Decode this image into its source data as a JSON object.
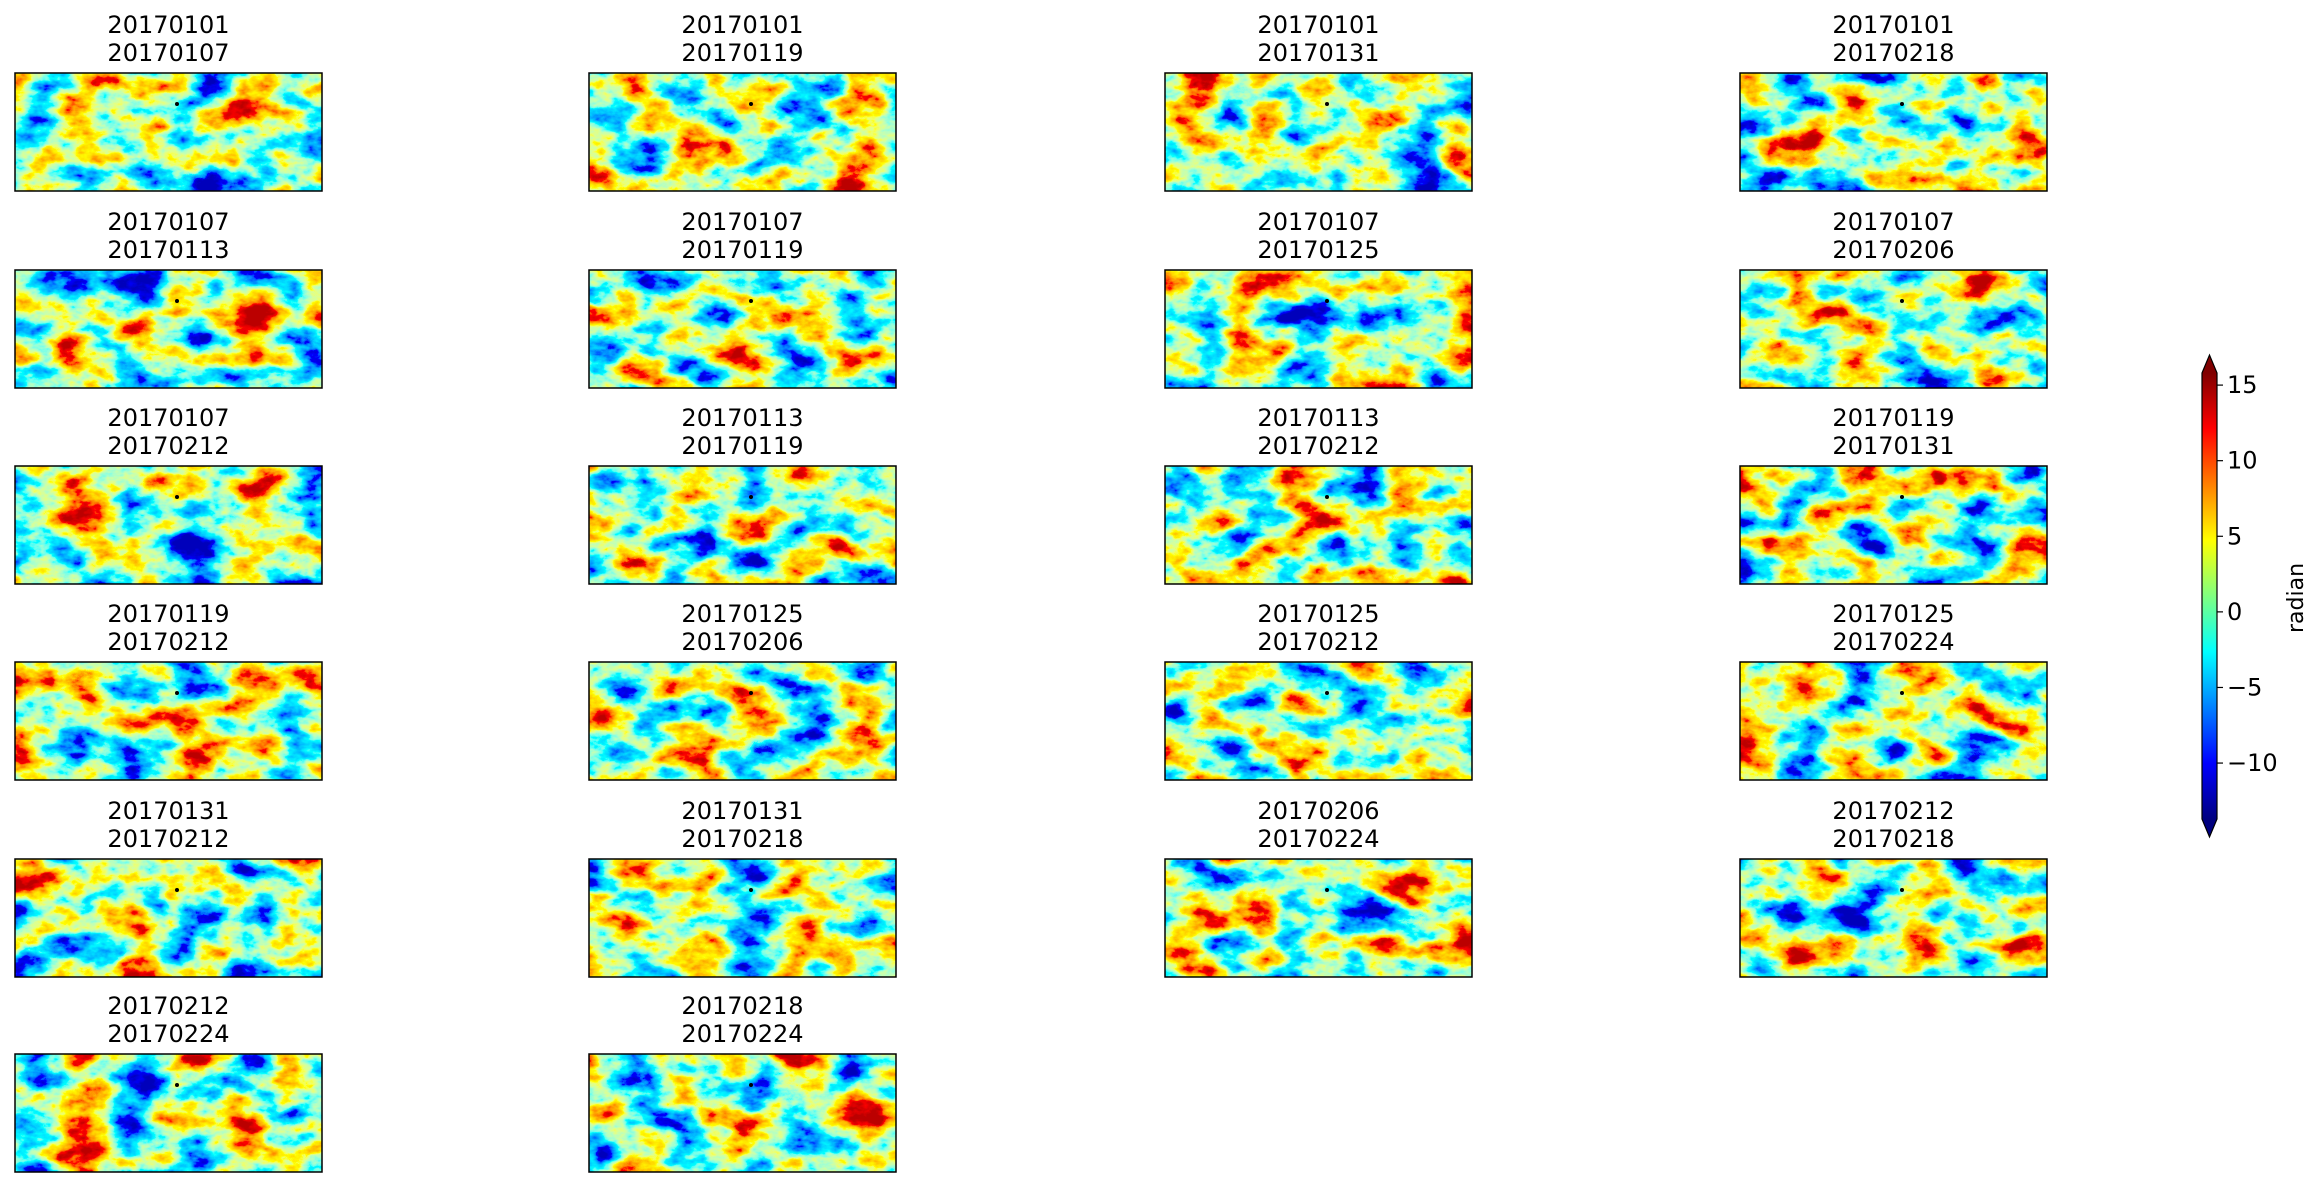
{
  "chart_data": {
    "type": "image-grid",
    "cmap": "jet",
    "panels": [
      [
        "20170101",
        "20170107"
      ],
      [
        "20170101",
        "20170119"
      ],
      [
        "20170101",
        "20170131"
      ],
      [
        "20170101",
        "20170218"
      ],
      [
        "20170107",
        "20170113"
      ],
      [
        "20170107",
        "20170119"
      ],
      [
        "20170107",
        "20170125"
      ],
      [
        "20170107",
        "20170206"
      ],
      [
        "20170107",
        "20170212"
      ],
      [
        "20170113",
        "20170119"
      ],
      [
        "20170113",
        "20170212"
      ],
      [
        "20170119",
        "20170131"
      ],
      [
        "20170119",
        "20170212"
      ],
      [
        "20170125",
        "20170206"
      ],
      [
        "20170125",
        "20170212"
      ],
      [
        "20170125",
        "20170224"
      ],
      [
        "20170131",
        "20170212"
      ],
      [
        "20170131",
        "20170218"
      ],
      [
        "20170206",
        "20170224"
      ],
      [
        "20170212",
        "20170218"
      ],
      [
        "20170212",
        "20170224"
      ],
      [
        "20170218",
        "20170224"
      ]
    ],
    "colorbar": {
      "label": "radian",
      "extend": "both",
      "ylim": [
        -13.7,
        15.8
      ],
      "yticks": [
        {
          "value": -10,
          "label": "−10"
        },
        {
          "value": -5,
          "label": "−5"
        },
        0,
        5,
        10,
        15
      ]
    }
  }
}
